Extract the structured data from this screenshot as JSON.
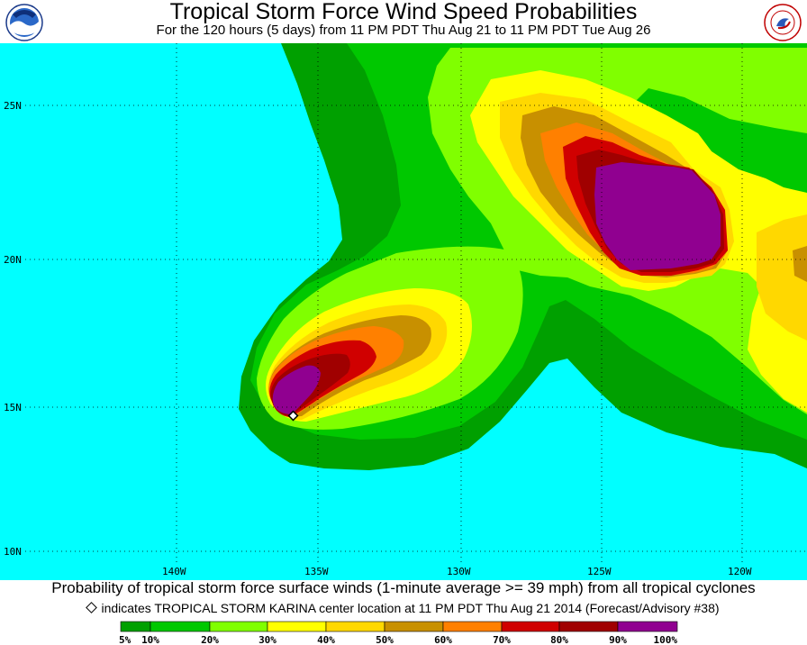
{
  "header": {
    "title": "Tropical Storm Force Wind Speed Probabilities",
    "subtitle": "For the 120 hours (5 days) from 11 PM PDT Thu Aug 21 to 11 PM PDT Tue Aug 26"
  },
  "map": {
    "latitude_labels": [
      "25N",
      "20N",
      "15N",
      "10N"
    ],
    "longitude_labels": [
      "140W",
      "135W",
      "130W",
      "125W",
      "120W"
    ],
    "storm_center_marker": "diamond-icon",
    "colors": {
      "ocean": "#00ffff",
      "p5": "#00a000",
      "p10": "#00c800",
      "p20": "#80ff00",
      "p30": "#ffff00",
      "p40": "#ffd800",
      "p50": "#c89000",
      "p60": "#ff8000",
      "p70": "#d00000",
      "p80": "#a00000",
      "p90": "#900090"
    }
  },
  "caption": "Probability of tropical storm force surface winds (1-minute average >= 39 mph) from all tropical cyclones",
  "center_note": "indicates TROPICAL STORM KARINA center location at 11 PM PDT Thu Aug 21 2014 (Forecast/Advisory #38)",
  "legend": {
    "labels": [
      "5%",
      "10%",
      "20%",
      "30%",
      "40%",
      "50%",
      "60%",
      "70%",
      "80%",
      "90%",
      "100%"
    ],
    "colors": [
      "#00a000",
      "#00c800",
      "#80ff00",
      "#ffff00",
      "#ffd800",
      "#c89000",
      "#ff8000",
      "#d00000",
      "#a00000",
      "#900090"
    ]
  }
}
